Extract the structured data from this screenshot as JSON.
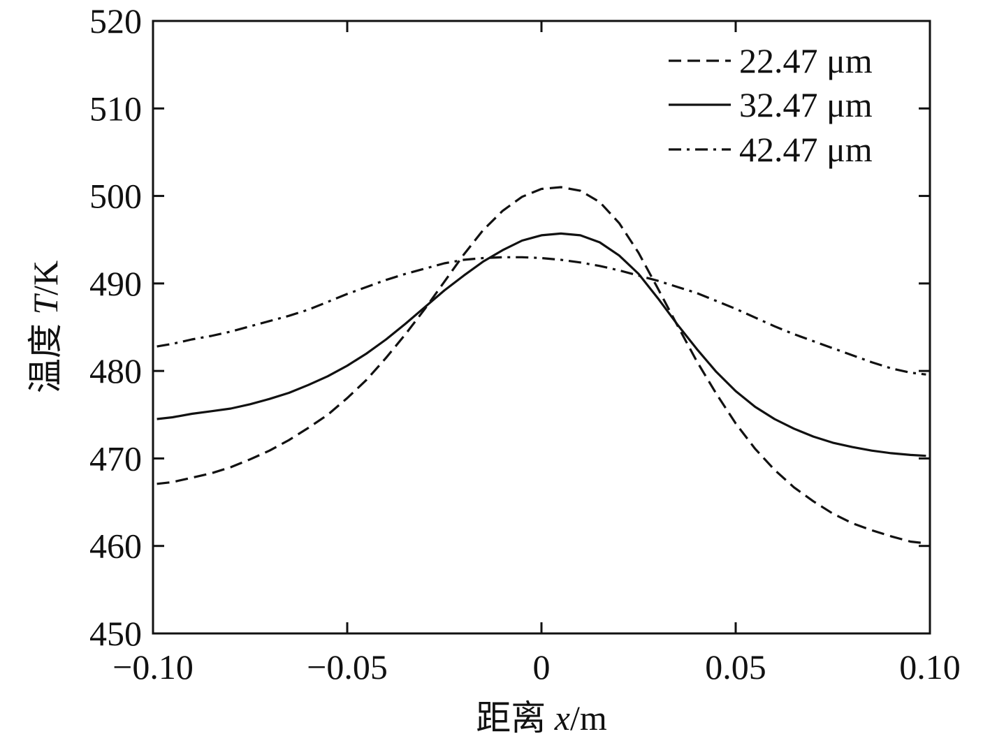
{
  "chart_data": {
    "type": "line",
    "title": "",
    "xlabel": "距离 x/m",
    "xlabel_parts": {
      "prefix": "距离 ",
      "var": "x",
      "unit": "/m"
    },
    "ylabel": "温度 T/K",
    "ylabel_parts": {
      "prefix": "温度 ",
      "var": "T",
      "unit": "/K"
    },
    "xlim": [
      -0.1,
      0.1
    ],
    "ylim": [
      450,
      520
    ],
    "xticks": [
      -0.1,
      -0.05,
      0,
      0.05,
      0.1
    ],
    "xtick_labels": [
      "−0.10",
      "−0.05",
      "0",
      "0.05",
      "0.10"
    ],
    "yticks": [
      450,
      460,
      470,
      480,
      490,
      500,
      510,
      520
    ],
    "ytick_labels": [
      "450",
      "460",
      "470",
      "480",
      "490",
      "500",
      "510",
      "520"
    ],
    "grid": false,
    "legend_position": "top-right",
    "series": [
      {
        "name": "22.47 μm",
        "style": "dashed",
        "x": [
          -0.099,
          -0.095,
          -0.09,
          -0.085,
          -0.08,
          -0.075,
          -0.07,
          -0.065,
          -0.06,
          -0.055,
          -0.05,
          -0.045,
          -0.04,
          -0.035,
          -0.03,
          -0.025,
          -0.02,
          -0.015,
          -0.01,
          -0.005,
          0.0,
          0.005,
          0.01,
          0.015,
          0.02,
          0.025,
          0.03,
          0.035,
          0.04,
          0.045,
          0.05,
          0.055,
          0.06,
          0.065,
          0.07,
          0.075,
          0.08,
          0.085,
          0.09,
          0.095,
          0.099
        ],
        "values": [
          467.1,
          467.3,
          467.8,
          468.3,
          469.0,
          469.9,
          470.9,
          472.1,
          473.5,
          475.0,
          476.9,
          479.0,
          481.5,
          484.2,
          487.1,
          490.2,
          493.3,
          496.1,
          498.3,
          499.9,
          500.8,
          501.0,
          500.6,
          499.3,
          496.9,
          493.5,
          489.4,
          485.2,
          481.1,
          477.4,
          474.0,
          471.1,
          468.7,
          466.7,
          465.1,
          463.7,
          462.6,
          461.8,
          461.1,
          460.5,
          460.3
        ]
      },
      {
        "name": "32.47 μm",
        "style": "solid",
        "x": [
          -0.099,
          -0.095,
          -0.09,
          -0.085,
          -0.08,
          -0.075,
          -0.07,
          -0.065,
          -0.06,
          -0.055,
          -0.05,
          -0.045,
          -0.04,
          -0.035,
          -0.03,
          -0.025,
          -0.02,
          -0.015,
          -0.01,
          -0.005,
          0.0,
          0.005,
          0.01,
          0.015,
          0.02,
          0.025,
          0.03,
          0.035,
          0.04,
          0.045,
          0.05,
          0.055,
          0.06,
          0.065,
          0.07,
          0.075,
          0.08,
          0.085,
          0.09,
          0.095,
          0.099
        ],
        "values": [
          474.5,
          474.7,
          475.1,
          475.4,
          475.7,
          476.2,
          476.8,
          477.5,
          478.4,
          479.4,
          480.6,
          482.0,
          483.6,
          485.4,
          487.3,
          489.2,
          490.9,
          492.5,
          493.8,
          494.9,
          495.5,
          495.7,
          495.5,
          494.7,
          493.2,
          491.1,
          488.3,
          485.3,
          482.5,
          479.9,
          477.7,
          475.9,
          474.5,
          473.4,
          472.5,
          471.8,
          471.3,
          470.9,
          470.6,
          470.4,
          470.3
        ]
      },
      {
        "name": "42.47 μm",
        "style": "dashdot",
        "x": [
          -0.099,
          -0.095,
          -0.09,
          -0.085,
          -0.08,
          -0.075,
          -0.07,
          -0.065,
          -0.06,
          -0.055,
          -0.05,
          -0.045,
          -0.04,
          -0.035,
          -0.03,
          -0.025,
          -0.02,
          -0.015,
          -0.01,
          -0.005,
          0.0,
          0.005,
          0.01,
          0.015,
          0.02,
          0.025,
          0.03,
          0.035,
          0.04,
          0.045,
          0.05,
          0.055,
          0.06,
          0.065,
          0.07,
          0.075,
          0.08,
          0.085,
          0.09,
          0.095,
          0.099
        ],
        "values": [
          482.8,
          483.1,
          483.6,
          484.0,
          484.5,
          485.1,
          485.7,
          486.3,
          487.0,
          487.9,
          488.8,
          489.6,
          490.4,
          491.1,
          491.7,
          492.3,
          492.7,
          492.9,
          493.0,
          493.0,
          492.9,
          492.7,
          492.4,
          492.0,
          491.5,
          490.9,
          490.3,
          489.6,
          488.9,
          488.0,
          487.1,
          486.1,
          485.1,
          484.2,
          483.4,
          482.6,
          481.8,
          481.0,
          480.3,
          479.8,
          479.6
        ]
      }
    ]
  }
}
